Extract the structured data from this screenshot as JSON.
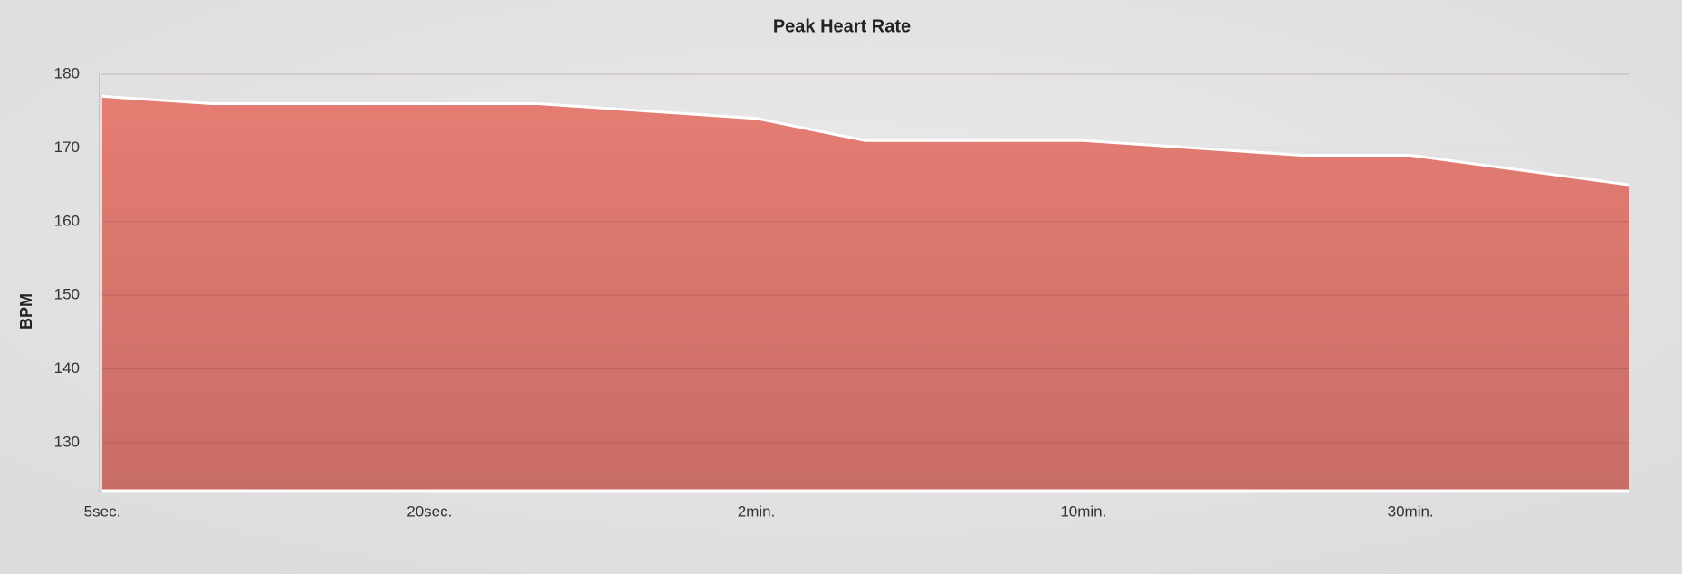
{
  "chart_data": {
    "type": "area",
    "title": "Peak Heart Rate",
    "y_label": "BPM",
    "categories": [
      "5sec.",
      null,
      null,
      "20sec.",
      null,
      null,
      "2min.",
      null,
      null,
      "10min.",
      null,
      null,
      "30min.",
      null,
      null
    ],
    "values": [
      177,
      176,
      176,
      176,
      176,
      175,
      174,
      171,
      171,
      171,
      170,
      169,
      169,
      167,
      165
    ],
    "color": "#e07a70",
    "ylim": [
      123.6,
      180
    ],
    "yticks": [
      130,
      140,
      150,
      160,
      170,
      180
    ],
    "grid": true
  }
}
